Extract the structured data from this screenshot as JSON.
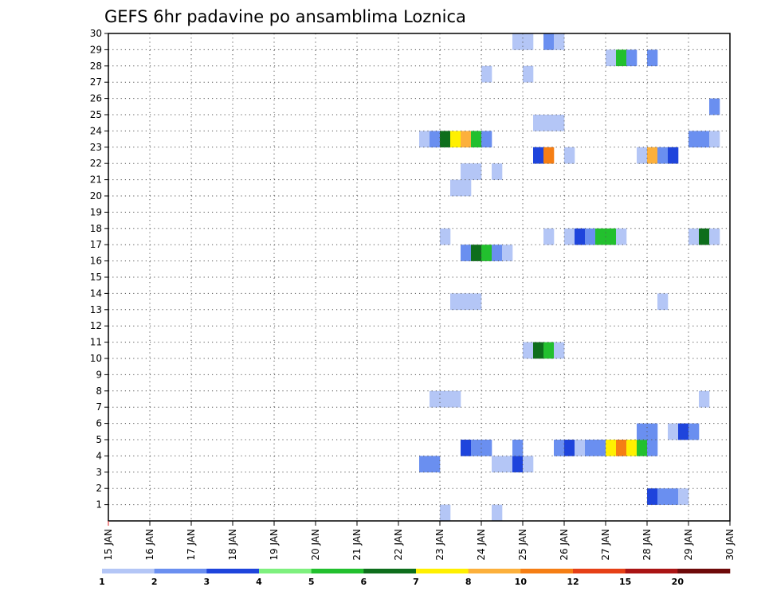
{
  "chart_data": {
    "type": "heatmap",
    "title": "GEFS 6hr padavine po ansamblima Loznica",
    "xlabel": "",
    "ylabel": "",
    "x_tick_labels": [
      "15 JAN",
      "16 JAN",
      "17 JAN",
      "18 JAN",
      "19 JAN",
      "20 JAN",
      "21 JAN",
      "22 JAN",
      "23 JAN",
      "24 JAN",
      "25 JAN",
      "26 JAN",
      "27 JAN",
      "28 JAN",
      "29 JAN",
      "30 JAN"
    ],
    "y_tick_labels": [
      "1",
      "2",
      "3",
      "4",
      "5",
      "6",
      "7",
      "8",
      "9",
      "10",
      "11",
      "12",
      "13",
      "14",
      "15",
      "16",
      "17",
      "18",
      "19",
      "20",
      "21",
      "22",
      "23",
      "24",
      "25",
      "26",
      "27",
      "28",
      "29",
      "30"
    ],
    "xlim_days": [
      15,
      30
    ],
    "ylim_members": [
      0,
      30
    ],
    "time_step_hours": 6,
    "grid": "dotted",
    "colorbar": {
      "labels": [
        "1",
        "2",
        "3",
        "4",
        "5",
        "6",
        "7",
        "8",
        "10",
        "12",
        "15",
        "20"
      ],
      "colors": [
        "#b4c6f6",
        "#6a8ff0",
        "#1e44dc",
        "#7ef07e",
        "#22c02e",
        "#0e6e1c",
        "#fff000",
        "#fcb03c",
        "#f57e14",
        "#e64016",
        "#aa1414",
        "#6e0a0a"
      ]
    },
    "cells": [
      {
        "member": 0,
        "day": 23.0,
        "value": 1
      },
      {
        "member": 0,
        "day": 24.25,
        "value": 1
      },
      {
        "member": 1,
        "day": 28.0,
        "value": 3
      },
      {
        "member": 1,
        "day": 28.25,
        "value": 2
      },
      {
        "member": 1,
        "day": 28.5,
        "value": 2
      },
      {
        "member": 1,
        "day": 28.75,
        "value": 1
      },
      {
        "member": 3,
        "day": 22.5,
        "value": 2
      },
      {
        "member": 3,
        "day": 22.75,
        "value": 2
      },
      {
        "member": 3,
        "day": 24.25,
        "value": 1
      },
      {
        "member": 3,
        "day": 24.5,
        "value": 1
      },
      {
        "member": 3,
        "day": 24.75,
        "value": 3
      },
      {
        "member": 3,
        "day": 25.0,
        "value": 1
      },
      {
        "member": 4,
        "day": 23.5,
        "value": 3
      },
      {
        "member": 4,
        "day": 23.75,
        "value": 2
      },
      {
        "member": 4,
        "day": 24.0,
        "value": 2
      },
      {
        "member": 4,
        "day": 24.75,
        "value": 2
      },
      {
        "member": 4,
        "day": 25.75,
        "value": 2
      },
      {
        "member": 4,
        "day": 26.0,
        "value": 3
      },
      {
        "member": 4,
        "day": 26.25,
        "value": 1
      },
      {
        "member": 4,
        "day": 26.5,
        "value": 2
      },
      {
        "member": 4,
        "day": 26.75,
        "value": 2
      },
      {
        "member": 4,
        "day": 27.0,
        "value": 7
      },
      {
        "member": 4,
        "day": 27.25,
        "value": 10
      },
      {
        "member": 4,
        "day": 27.5,
        "value": 7
      },
      {
        "member": 4,
        "day": 27.75,
        "value": 5
      },
      {
        "member": 4,
        "day": 28.0,
        "value": 2
      },
      {
        "member": 5,
        "day": 27.75,
        "value": 2
      },
      {
        "member": 5,
        "day": 28.0,
        "value": 2
      },
      {
        "member": 5,
        "day": 28.5,
        "value": 1
      },
      {
        "member": 5,
        "day": 28.75,
        "value": 3
      },
      {
        "member": 5,
        "day": 29.0,
        "value": 2
      },
      {
        "member": 7,
        "day": 22.75,
        "value": 1
      },
      {
        "member": 7,
        "day": 23.0,
        "value": 1
      },
      {
        "member": 7,
        "day": 23.25,
        "value": 1
      },
      {
        "member": 7,
        "day": 29.25,
        "value": 1
      },
      {
        "member": 10,
        "day": 25.0,
        "value": 1
      },
      {
        "member": 10,
        "day": 25.25,
        "value": 6
      },
      {
        "member": 10,
        "day": 25.5,
        "value": 5
      },
      {
        "member": 10,
        "day": 25.75,
        "value": 1
      },
      {
        "member": 13,
        "day": 23.25,
        "value": 1
      },
      {
        "member": 13,
        "day": 23.5,
        "value": 1
      },
      {
        "member": 13,
        "day": 23.75,
        "value": 1
      },
      {
        "member": 13,
        "day": 28.25,
        "value": 1
      },
      {
        "member": 16,
        "day": 23.5,
        "value": 2
      },
      {
        "member": 16,
        "day": 23.75,
        "value": 6
      },
      {
        "member": 16,
        "day": 24.0,
        "value": 5
      },
      {
        "member": 16,
        "day": 24.25,
        "value": 2
      },
      {
        "member": 16,
        "day": 24.5,
        "value": 1
      },
      {
        "member": 17,
        "day": 23.0,
        "value": 1
      },
      {
        "member": 17,
        "day": 25.5,
        "value": 1
      },
      {
        "member": 17,
        "day": 26.0,
        "value": 1
      },
      {
        "member": 17,
        "day": 26.25,
        "value": 3
      },
      {
        "member": 17,
        "day": 26.5,
        "value": 2
      },
      {
        "member": 17,
        "day": 26.75,
        "value": 5
      },
      {
        "member": 17,
        "day": 27.0,
        "value": 5
      },
      {
        "member": 17,
        "day": 27.25,
        "value": 1
      },
      {
        "member": 17,
        "day": 29.0,
        "value": 1
      },
      {
        "member": 17,
        "day": 29.25,
        "value": 6
      },
      {
        "member": 17,
        "day": 29.5,
        "value": 1
      },
      {
        "member": 20,
        "day": 23.25,
        "value": 1
      },
      {
        "member": 20,
        "day": 23.5,
        "value": 1
      },
      {
        "member": 21,
        "day": 23.5,
        "value": 1
      },
      {
        "member": 21,
        "day": 23.75,
        "value": 1
      },
      {
        "member": 21,
        "day": 24.25,
        "value": 1
      },
      {
        "member": 22,
        "day": 25.25,
        "value": 3
      },
      {
        "member": 22,
        "day": 25.5,
        "value": 10
      },
      {
        "member": 22,
        "day": 26.0,
        "value": 1
      },
      {
        "member": 22,
        "day": 27.75,
        "value": 1
      },
      {
        "member": 22,
        "day": 28.0,
        "value": 8
      },
      {
        "member": 22,
        "day": 28.25,
        "value": 2
      },
      {
        "member": 22,
        "day": 28.5,
        "value": 3
      },
      {
        "member": 23,
        "day": 22.5,
        "value": 1
      },
      {
        "member": 23,
        "day": 22.75,
        "value": 2
      },
      {
        "member": 23,
        "day": 23.0,
        "value": 6
      },
      {
        "member": 23,
        "day": 23.25,
        "value": 7
      },
      {
        "member": 23,
        "day": 23.5,
        "value": 8
      },
      {
        "member": 23,
        "day": 23.75,
        "value": 5
      },
      {
        "member": 23,
        "day": 24.0,
        "value": 2
      },
      {
        "member": 23,
        "day": 29.0,
        "value": 2
      },
      {
        "member": 23,
        "day": 29.25,
        "value": 2
      },
      {
        "member": 23,
        "day": 29.5,
        "value": 1
      },
      {
        "member": 24,
        "day": 25.25,
        "value": 1
      },
      {
        "member": 24,
        "day": 25.5,
        "value": 1
      },
      {
        "member": 24,
        "day": 25.75,
        "value": 1
      },
      {
        "member": 25,
        "day": 29.5,
        "value": 2
      },
      {
        "member": 27,
        "day": 24.0,
        "value": 1
      },
      {
        "member": 27,
        "day": 25.0,
        "value": 1
      },
      {
        "member": 28,
        "day": 27.0,
        "value": 1
      },
      {
        "member": 28,
        "day": 27.25,
        "value": 5
      },
      {
        "member": 28,
        "day": 27.5,
        "value": 2
      },
      {
        "member": 28,
        "day": 28.0,
        "value": 2
      },
      {
        "member": 29,
        "day": 24.75,
        "value": 1
      },
      {
        "member": 29,
        "day": 25.0,
        "value": 1
      },
      {
        "member": 29,
        "day": 25.5,
        "value": 2
      },
      {
        "member": 29,
        "day": 25.75,
        "value": 1
      }
    ]
  }
}
